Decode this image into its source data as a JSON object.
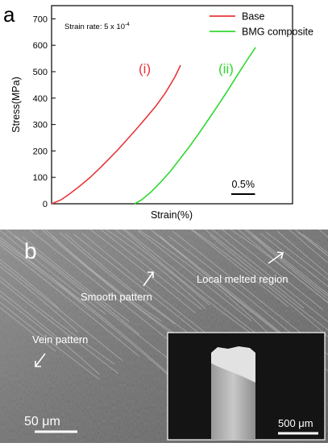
{
  "panel_labels": {
    "a": "a",
    "b": "b"
  },
  "chart_data": {
    "type": "line",
    "ylabel": "Stress(MPa)",
    "xlabel": "Strain(%)",
    "ylim": [
      0,
      750
    ],
    "yticks": [
      0,
      100,
      200,
      300,
      400,
      500,
      600,
      700
    ],
    "grid": false,
    "legend_position": "top-right",
    "annotation_rate_prefix": "Strain rate: 5 x 10",
    "annotation_rate_exp": "-4",
    "scale_bar_label": "0.5%",
    "scale_bar_strain": 0.5,
    "series": [
      {
        "name": "Base",
        "marker": "(i)",
        "color": "#e8373a",
        "x": [
          0.0,
          0.2,
          0.4,
          0.6,
          0.8,
          1.0,
          1.2,
          1.4,
          1.6,
          1.8,
          2.0,
          2.2,
          2.4,
          2.6,
          2.72
        ],
        "y": [
          0,
          15,
          40,
          68,
          98,
          132,
          168,
          205,
          245,
          285,
          327,
          370,
          420,
          480,
          525
        ]
      },
      {
        "name": "BMG composite",
        "marker": "(ii)",
        "color": "#2fd82f",
        "x": [
          1.75,
          1.9,
          2.1,
          2.3,
          2.5,
          2.7,
          2.9,
          3.1,
          3.3,
          3.5,
          3.7,
          3.9,
          4.1,
          4.3
        ],
        "y": [
          0,
          15,
          45,
          82,
          122,
          168,
          215,
          265,
          317,
          370,
          425,
          482,
          538,
          592
        ]
      }
    ]
  },
  "sem": {
    "labels": {
      "smooth": "Smooth pattern",
      "melted": "Local melted region",
      "vein": "Vein pattern"
    },
    "scale_main": "50 μm",
    "scale_inset": "500 μm"
  }
}
